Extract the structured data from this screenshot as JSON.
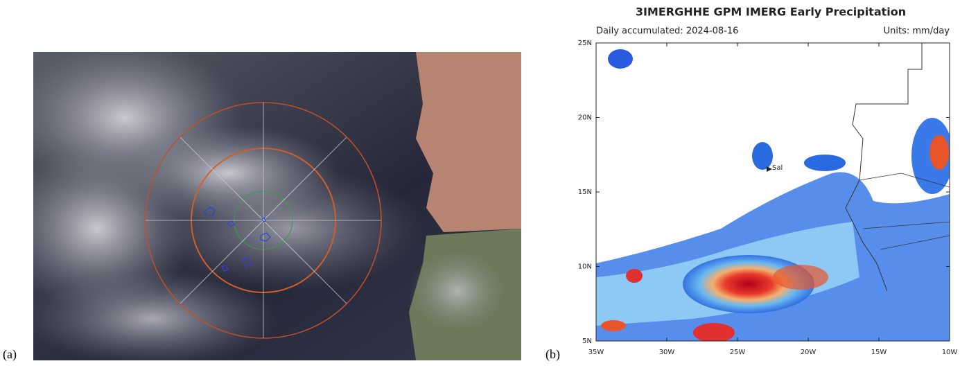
{
  "panels": [
    {
      "label": "(a)"
    },
    {
      "label": "(b)",
      "title": "3IMERGHHE GPM IMERG Early Precipitation",
      "subtitle": "Daily accumulated: 2024-08-16",
      "units": "Units: mm/day",
      "lat_labels": [
        "25N",
        "20N",
        "15N",
        "10N",
        "5N"
      ],
      "lon_labels": [
        "35W",
        "30W",
        "25W",
        "20W",
        "15W",
        "10W"
      ],
      "place": "Sal"
    }
  ]
}
